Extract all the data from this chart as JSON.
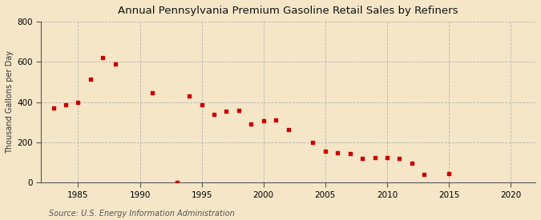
{
  "title": "Annual Pennsylvania Premium Gasoline Retail Sales by Refiners",
  "ylabel": "Thousand Gallons per Day",
  "source": "Source: U.S. Energy Information Administration",
  "background_color": "#f5e6c8",
  "plot_background_color": "#f5e6c8",
  "marker_color": "#cc0000",
  "grid_color": "#aaaaaa",
  "years": [
    1983,
    1984,
    1985,
    1986,
    1987,
    1988,
    1991,
    1993,
    1994,
    1995,
    1996,
    1997,
    1998,
    1999,
    2000,
    2001,
    2002,
    2004,
    2005,
    2006,
    2007,
    2008,
    2009,
    2010,
    2011,
    2012,
    2013,
    2015
  ],
  "values": [
    370,
    385,
    400,
    515,
    620,
    590,
    445,
    3,
    430,
    385,
    340,
    355,
    360,
    290,
    305,
    310,
    265,
    200,
    155,
    150,
    145,
    120,
    125,
    125,
    120,
    95,
    40,
    45
  ],
  "xlim": [
    1982,
    2022
  ],
  "ylim": [
    0,
    800
  ],
  "xticks": [
    1985,
    1990,
    1995,
    2000,
    2005,
    2010,
    2015,
    2020
  ],
  "yticks": [
    0,
    200,
    400,
    600,
    800
  ]
}
